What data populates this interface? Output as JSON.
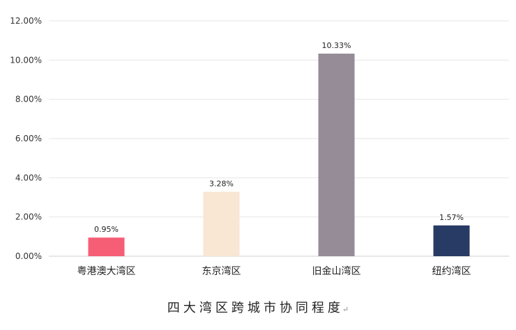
{
  "chart_data": {
    "type": "bar",
    "title": "四大湾区跨城市协同程度",
    "categories": [
      "粤港澳大湾区",
      "东京湾区",
      "旧金山湾区",
      "纽约湾区"
    ],
    "values": [
      0.95,
      3.28,
      10.33,
      1.57
    ],
    "value_labels": [
      "0.95%",
      "3.28%",
      "10.33%",
      "1.57%"
    ],
    "colors": [
      "#F65E76",
      "#F9E6D3",
      "#958C98",
      "#283B64"
    ],
    "ylim": [
      0,
      12
    ],
    "yticks": [
      "0.00%",
      "2.00%",
      "4.00%",
      "6.00%",
      "8.00%",
      "10.00%",
      "12.00%"
    ],
    "grid": true,
    "legend": "none",
    "xlabel": "",
    "ylabel": ""
  },
  "caption": {
    "text": "四大湾区跨城市协同程度",
    "return_mark": "↵"
  }
}
